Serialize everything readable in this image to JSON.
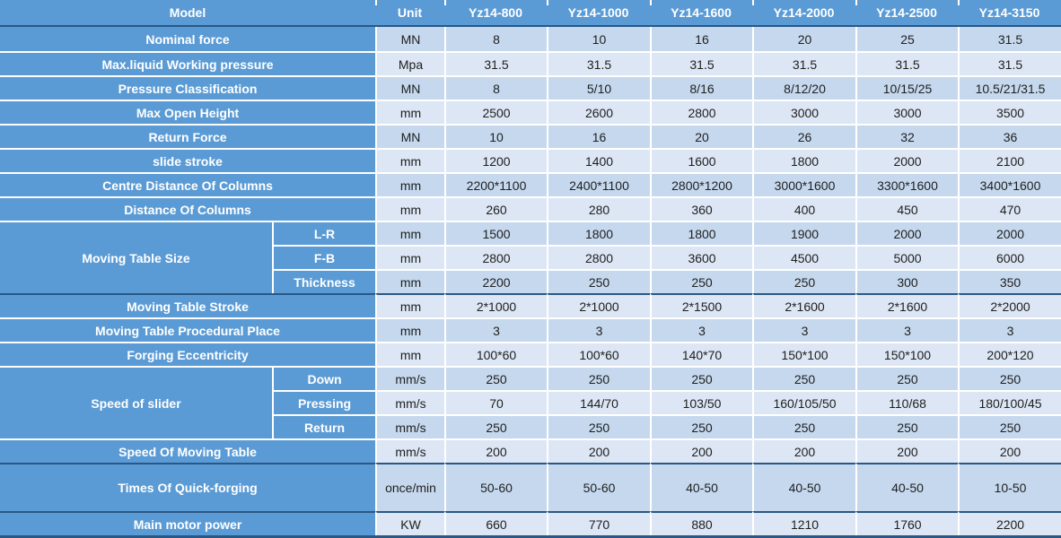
{
  "colors": {
    "label_blue": "#5B9BD5",
    "band_dark": "#C5D8EE",
    "band_light": "#DCE6F4",
    "gridline_white": "#FFFFFF",
    "separator_navy": "#2A5784",
    "label_text": "#FFFFFF",
    "value_text": "#1F1F1F"
  },
  "table": {
    "header": {
      "model": "Model",
      "unit": "Unit",
      "models": [
        "Yz14-800",
        "Yz14-1000",
        "Yz14-1600",
        "Yz14-2000",
        "Yz14-2500",
        "Yz14-3150"
      ]
    },
    "rows": [
      {
        "label": "Nominal force",
        "unit": "MN",
        "values": [
          "8",
          "10",
          "16",
          "20",
          "25",
          "31.5"
        ]
      },
      {
        "label": "Max.liquid Working pressure",
        "unit": "Mpa",
        "values": [
          "31.5",
          "31.5",
          "31.5",
          "31.5",
          "31.5",
          "31.5"
        ]
      },
      {
        "label": "Pressure Classification",
        "unit": "MN",
        "values": [
          "8",
          "5/10",
          "8/16",
          "8/12/20",
          "10/15/25",
          "10.5/21/31.5"
        ]
      },
      {
        "label": "Max Open Height",
        "unit": "mm",
        "values": [
          "2500",
          "2600",
          "2800",
          "3000",
          "3000",
          "3500"
        ]
      },
      {
        "label": "Return Force",
        "unit": "MN",
        "values": [
          "10",
          "16",
          "20",
          "26",
          "32",
          "36"
        ]
      },
      {
        "label": "slide stroke",
        "unit": "mm",
        "values": [
          "1200",
          "1400",
          "1600",
          "1800",
          "2000",
          "2100"
        ]
      },
      {
        "label": "Centre Distance Of Columns",
        "unit": "mm",
        "values": [
          "2200*1100",
          "2400*1100",
          "2800*1200",
          "3000*1600",
          "3300*1600",
          "3400*1600"
        ]
      },
      {
        "label": "Distance Of Columns",
        "unit": "mm",
        "values": [
          "260",
          "280",
          "360",
          "400",
          "450",
          "470"
        ]
      },
      {
        "group": "Moving Table Size",
        "group_span": 3,
        "sub": "L-R",
        "unit": "mm",
        "values": [
          "1500",
          "1800",
          "1800",
          "1900",
          "2000",
          "2000"
        ]
      },
      {
        "sub": "F-B",
        "unit": "mm",
        "values": [
          "2800",
          "2800",
          "3600",
          "4500",
          "5000",
          "6000"
        ]
      },
      {
        "sub": "Thickness",
        "unit": "mm",
        "values": [
          "2200",
          "250",
          "250",
          "250",
          "300",
          "350"
        ]
      },
      {
        "label": "Moving Table Stroke",
        "unit": "mm",
        "values": [
          "2*1000",
          "2*1000",
          "2*1500",
          "2*1600",
          "2*1600",
          "2*2000"
        ],
        "dark_top": true
      },
      {
        "label": "Moving Table Procedural Place",
        "unit": "mm",
        "values": [
          "3",
          "3",
          "3",
          "3",
          "3",
          "3"
        ]
      },
      {
        "label": "Forging Eccentricity",
        "unit": "mm",
        "values": [
          "100*60",
          "100*60",
          "140*70",
          "150*100",
          "150*100",
          "200*120"
        ]
      },
      {
        "group": "Speed of slider",
        "group_span": 3,
        "sub": "Down",
        "unit": "mm/s",
        "values": [
          "250",
          "250",
          "250",
          "250",
          "250",
          "250"
        ]
      },
      {
        "sub": "Pressing",
        "unit": "mm/s",
        "values": [
          "70",
          "144/70",
          "103/50",
          "160/105/50",
          "110/68",
          "180/100/45"
        ]
      },
      {
        "sub": "Return",
        "unit": "mm/s",
        "values": [
          "250",
          "250",
          "250",
          "250",
          "250",
          "250"
        ]
      },
      {
        "label": "Speed Of Moving Table",
        "unit": "mm/s",
        "values": [
          "200",
          "200",
          "200",
          "200",
          "200",
          "200"
        ]
      },
      {
        "label": "Times Of Quick-forging",
        "unit": "once/min",
        "values": [
          "50-60",
          "50-60",
          "40-50",
          "40-50",
          "40-50",
          "10-50"
        ],
        "tall": true,
        "dark_top": true
      },
      {
        "label": "Main motor power",
        "unit": "KW",
        "values": [
          "660",
          "770",
          "880",
          "1210",
          "1760",
          "2200"
        ],
        "dark_top": true
      }
    ]
  }
}
